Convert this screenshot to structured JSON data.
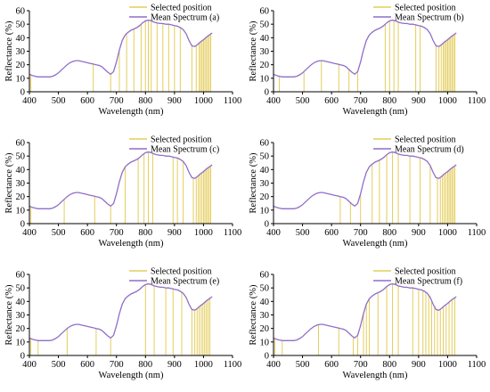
{
  "colors": {
    "spectrum": "#8f6ec8",
    "selected": "#e4cd5a",
    "axis": "#000000"
  },
  "chart_data": [
    {
      "type": "line",
      "panel": "a",
      "xlabel": "Wavelength (nm)",
      "ylabel": "Reflectance (%)",
      "xlim": [
        400,
        1100
      ],
      "ylim": [
        0,
        60
      ],
      "xticks": [
        "400",
        "500",
        "600",
        "700",
        "800",
        "900",
        "1000",
        "1100"
      ],
      "yticks": [
        "0",
        "10",
        "20",
        "30",
        "40",
        "50",
        "60"
      ],
      "legend": [
        "Selected position",
        "Mean Spectrum (a)"
      ],
      "legend_position": "top-right",
      "spectrum": {
        "name": "Mean Spectrum (a)",
        "x": [
          400,
          410,
          420,
          430,
          440,
          450,
          460,
          470,
          480,
          490,
          500,
          510,
          520,
          530,
          540,
          550,
          560,
          570,
          580,
          590,
          600,
          610,
          620,
          630,
          640,
          650,
          660,
          670,
          680,
          690,
          700,
          710,
          720,
          730,
          740,
          750,
          760,
          770,
          780,
          790,
          800,
          810,
          820,
          830,
          840,
          850,
          860,
          870,
          880,
          890,
          900,
          910,
          920,
          930,
          940,
          950,
          960,
          970,
          980,
          990,
          1000,
          1010,
          1020,
          1030
        ],
        "y": [
          13,
          12,
          11.5,
          11,
          11,
          11,
          11,
          11,
          11.5,
          12.5,
          14,
          16,
          18,
          20,
          21.5,
          22.5,
          23,
          23,
          22.5,
          22,
          21.5,
          21,
          20.5,
          20,
          19.5,
          18.5,
          16.5,
          14.5,
          13,
          15,
          22,
          31,
          38,
          42,
          44,
          45.5,
          46.5,
          47.5,
          49,
          51,
          52.5,
          53,
          52.5,
          51.5,
          51,
          50.5,
          50.5,
          50,
          50,
          49.5,
          49,
          48.5,
          47.5,
          46,
          43,
          38,
          34,
          33.5,
          35,
          37,
          38.5,
          40.5,
          42,
          43.5
        ]
      },
      "selected_positions": [
        405,
        620,
        680,
        710,
        735,
        760,
        785,
        800,
        810,
        820,
        840,
        860,
        880,
        900,
        920,
        960,
        975,
        985,
        990,
        995,
        1000,
        1005,
        1010,
        1015,
        1020,
        1025
      ]
    },
    {
      "type": "line",
      "panel": "b",
      "xlabel": "Wavelength (nm)",
      "ylabel": "Reflectance (%)",
      "xlim": [
        400,
        1100
      ],
      "ylim": [
        0,
        60
      ],
      "xticks": [
        "400",
        "500",
        "600",
        "700",
        "800",
        "900",
        "1000",
        "1100"
      ],
      "yticks": [
        "0",
        "10",
        "20",
        "30",
        "40",
        "50",
        "60"
      ],
      "legend": [
        "Selected position",
        "Mean Spectrum (b)"
      ],
      "legend_position": "top-right",
      "spectrum": {
        "name": "Mean Spectrum (b)",
        "x": [
          400,
          410,
          420,
          430,
          440,
          450,
          460,
          470,
          480,
          490,
          500,
          510,
          520,
          530,
          540,
          550,
          560,
          570,
          580,
          590,
          600,
          610,
          620,
          630,
          640,
          650,
          660,
          670,
          680,
          690,
          700,
          710,
          720,
          730,
          740,
          750,
          760,
          770,
          780,
          790,
          800,
          810,
          820,
          830,
          840,
          850,
          860,
          870,
          880,
          890,
          900,
          910,
          920,
          930,
          940,
          950,
          960,
          970,
          980,
          990,
          1000,
          1010,
          1020,
          1030
        ],
        "y": [
          13,
          12,
          11.5,
          11,
          11,
          11,
          11,
          11,
          11.5,
          12.5,
          14,
          16,
          18,
          20,
          21.5,
          22.5,
          23,
          23,
          22.5,
          22,
          21.5,
          21,
          20.5,
          20,
          19.5,
          18.5,
          16.5,
          14.5,
          13,
          15,
          22,
          31,
          38,
          42,
          44,
          45.5,
          46.5,
          47.5,
          49,
          51,
          52.5,
          53,
          52.5,
          51.5,
          51,
          50.5,
          50.5,
          50,
          50,
          49.5,
          49,
          48.5,
          47.5,
          46,
          43,
          38,
          34,
          33.5,
          35,
          37,
          38.5,
          40.5,
          42,
          43.5
        ]
      },
      "selected_positions": [
        420,
        505,
        565,
        625,
        660,
        690,
        785,
        800,
        815,
        830,
        890,
        905,
        960,
        970,
        978,
        985,
        990,
        995,
        1000,
        1005,
        1010,
        1015,
        1020,
        1025
      ]
    },
    {
      "type": "line",
      "panel": "c",
      "xlabel": "Wavelength (nm)",
      "ylabel": "Reflectance (%)",
      "xlim": [
        400,
        1100
      ],
      "ylim": [
        0,
        60
      ],
      "xticks": [
        "400",
        "500",
        "600",
        "700",
        "800",
        "900",
        "1000",
        "1100"
      ],
      "yticks": [
        "0",
        "10",
        "20",
        "30",
        "40",
        "50",
        "60"
      ],
      "legend": [
        "Selected position",
        "Mean Spectrum (c)"
      ],
      "legend_position": "top-right",
      "spectrum": {
        "name": "Mean Spectrum (c)",
        "x": [
          400,
          410,
          420,
          430,
          440,
          450,
          460,
          470,
          480,
          490,
          500,
          510,
          520,
          530,
          540,
          550,
          560,
          570,
          580,
          590,
          600,
          610,
          620,
          630,
          640,
          650,
          660,
          670,
          680,
          690,
          700,
          710,
          720,
          730,
          740,
          750,
          760,
          770,
          780,
          790,
          800,
          810,
          820,
          830,
          840,
          850,
          860,
          870,
          880,
          890,
          900,
          910,
          920,
          930,
          940,
          950,
          960,
          970,
          980,
          990,
          1000,
          1010,
          1020,
          1030
        ],
        "y": [
          13,
          12,
          11.5,
          11,
          11,
          11,
          11,
          11,
          11.5,
          12.5,
          14,
          16,
          18,
          20,
          21.5,
          22.5,
          23,
          23,
          22.5,
          22,
          21.5,
          21,
          20.5,
          20,
          19.5,
          18.5,
          16.5,
          14.5,
          13,
          15,
          22,
          31,
          38,
          42,
          44,
          45.5,
          46.5,
          47.5,
          49,
          51,
          52.5,
          53,
          52.5,
          51.5,
          51,
          50.5,
          50.5,
          50,
          50,
          49.5,
          49,
          48.5,
          47.5,
          46,
          43,
          38,
          34,
          33.5,
          35,
          37,
          38.5,
          40.5,
          42,
          43.5
        ]
      },
      "selected_positions": [
        405,
        520,
        625,
        680,
        730,
        775,
        795,
        810,
        825,
        895,
        910,
        930,
        965,
        975,
        982,
        988,
        994,
        1000,
        1005,
        1010,
        1015,
        1020,
        1025
      ]
    },
    {
      "type": "line",
      "panel": "d",
      "xlabel": "Wavelength (nm)",
      "ylabel": "Reflectance (%)",
      "xlim": [
        400,
        1100
      ],
      "ylim": [
        0,
        60
      ],
      "xticks": [
        "400",
        "500",
        "600",
        "700",
        "800",
        "900",
        "1000",
        "1100"
      ],
      "yticks": [
        "0",
        "10",
        "20",
        "30",
        "40",
        "50",
        "60"
      ],
      "legend": [
        "Selected position",
        "Mean Spectrum (d)"
      ],
      "legend_position": "top-right",
      "spectrum": {
        "name": "Mean Spectrum (d)",
        "x": [
          400,
          410,
          420,
          430,
          440,
          450,
          460,
          470,
          480,
          490,
          500,
          510,
          520,
          530,
          540,
          550,
          560,
          570,
          580,
          590,
          600,
          610,
          620,
          630,
          640,
          650,
          660,
          670,
          680,
          690,
          700,
          710,
          720,
          730,
          740,
          750,
          760,
          770,
          780,
          790,
          800,
          810,
          820,
          830,
          840,
          850,
          860,
          870,
          880,
          890,
          900,
          910,
          920,
          930,
          940,
          950,
          960,
          970,
          980,
          990,
          1000,
          1010,
          1020,
          1030
        ],
        "y": [
          13,
          12,
          11.5,
          11,
          11,
          11,
          11,
          11,
          11.5,
          12.5,
          14,
          16,
          18,
          20,
          21.5,
          22.5,
          23,
          23,
          22.5,
          22,
          21.5,
          21,
          20.5,
          20,
          19.5,
          18.5,
          16.5,
          14.5,
          13,
          15,
          22,
          31,
          38,
          42,
          44,
          45.5,
          46.5,
          47.5,
          49,
          51,
          52.5,
          53,
          52.5,
          51.5,
          51,
          50.5,
          50.5,
          50,
          50,
          49.5,
          49,
          48.5,
          47.5,
          46,
          43,
          38,
          34,
          33.5,
          35,
          37,
          38.5,
          40.5,
          42,
          43.5
        ]
      },
      "selected_positions": [
        630,
        665,
        700,
        740,
        765,
        790,
        810,
        830,
        870,
        905,
        940,
        965,
        975,
        982,
        988,
        994,
        1000,
        1005,
        1010,
        1015,
        1020,
        1025
      ]
    },
    {
      "type": "line",
      "panel": "e",
      "xlabel": "Wavelength (nm)",
      "ylabel": "Reflectance (%)",
      "xlim": [
        400,
        1100
      ],
      "ylim": [
        0,
        60
      ],
      "xticks": [
        "400",
        "500",
        "600",
        "700",
        "800",
        "900",
        "1000",
        "1100"
      ],
      "yticks": [
        "0",
        "10",
        "20",
        "30",
        "40",
        "50",
        "60"
      ],
      "legend": [
        "Selected position",
        "Mean Spectrum (e)"
      ],
      "legend_position": "top-right",
      "spectrum": {
        "name": "Mean Spectrum (e)",
        "x": [
          400,
          410,
          420,
          430,
          440,
          450,
          460,
          470,
          480,
          490,
          500,
          510,
          520,
          530,
          540,
          550,
          560,
          570,
          580,
          590,
          600,
          610,
          620,
          630,
          640,
          650,
          660,
          670,
          680,
          690,
          700,
          710,
          720,
          730,
          740,
          750,
          760,
          770,
          780,
          790,
          800,
          810,
          820,
          830,
          840,
          850,
          860,
          870,
          880,
          890,
          900,
          910,
          920,
          930,
          940,
          950,
          960,
          970,
          980,
          990,
          1000,
          1010,
          1020,
          1030
        ],
        "y": [
          13,
          12,
          11.5,
          11,
          11,
          11,
          11,
          11,
          11.5,
          12.5,
          14,
          16,
          18,
          20,
          21.5,
          22.5,
          23,
          23,
          22.5,
          22,
          21.5,
          21,
          20.5,
          20,
          19.5,
          18.5,
          16.5,
          14.5,
          13,
          15,
          22,
          31,
          38,
          42,
          44,
          45.5,
          46.5,
          47.5,
          49,
          51,
          52.5,
          53,
          52.5,
          51.5,
          51,
          50.5,
          50.5,
          50,
          50,
          49.5,
          49,
          48.5,
          47.5,
          46,
          43,
          38,
          34,
          33.5,
          35,
          37,
          38.5,
          40.5,
          42,
          43.5
        ]
      },
      "selected_positions": [
        405,
        430,
        530,
        630,
        680,
        800,
        830,
        870,
        895,
        925,
        960,
        970,
        978,
        985,
        992,
        998,
        1004,
        1010,
        1016,
        1022
      ]
    },
    {
      "type": "line",
      "panel": "f",
      "xlabel": "Wavelength (nm)",
      "ylabel": "Reflectance (%)",
      "xlim": [
        400,
        1100
      ],
      "ylim": [
        0,
        60
      ],
      "xticks": [
        "400",
        "500",
        "600",
        "700",
        "800",
        "900",
        "1000",
        "1100"
      ],
      "yticks": [
        "0",
        "10",
        "20",
        "30",
        "40",
        "50",
        "60"
      ],
      "legend": [
        "Selected position",
        "Mean Spectrum (f)"
      ],
      "legend_position": "top-right",
      "spectrum": {
        "name": "Mean Spectrum (f)",
        "x": [
          400,
          410,
          420,
          430,
          440,
          450,
          460,
          470,
          480,
          490,
          500,
          510,
          520,
          530,
          540,
          550,
          560,
          570,
          580,
          590,
          600,
          610,
          620,
          630,
          640,
          650,
          660,
          670,
          680,
          690,
          700,
          710,
          720,
          730,
          740,
          750,
          760,
          770,
          780,
          790,
          800,
          810,
          820,
          830,
          840,
          850,
          860,
          870,
          880,
          890,
          900,
          910,
          920,
          930,
          940,
          950,
          960,
          970,
          980,
          990,
          1000,
          1010,
          1020,
          1030
        ],
        "y": [
          13,
          12,
          11.5,
          11,
          11,
          11,
          11,
          11,
          11.5,
          12.5,
          14,
          16,
          18,
          20,
          21.5,
          22.5,
          23,
          23,
          22.5,
          22,
          21.5,
          21,
          20.5,
          20,
          19.5,
          18.5,
          16.5,
          14.5,
          13,
          15,
          22,
          31,
          38,
          42,
          44,
          45.5,
          46.5,
          47.5,
          49,
          51,
          52.5,
          53,
          52.5,
          51.5,
          51,
          50.5,
          50.5,
          50,
          50,
          49.5,
          49,
          48.5,
          47.5,
          46,
          43,
          38,
          34,
          33.5,
          35,
          37,
          38.5,
          40.5,
          42,
          43.5
        ]
      },
      "selected_positions": [
        405,
        430,
        555,
        625,
        675,
        690,
        710,
        720,
        730,
        760,
        790,
        810,
        830,
        880,
        900,
        915,
        925,
        935,
        945,
        955,
        965,
        975,
        985,
        995,
        1005,
        1015,
        1025
      ]
    }
  ]
}
